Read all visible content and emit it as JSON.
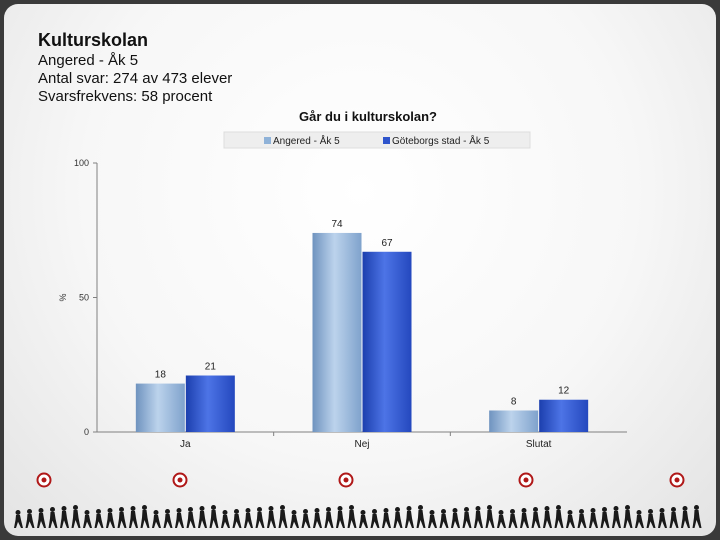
{
  "header": {
    "title": "Kulturskolan",
    "line1": "Angered - Åk 5",
    "line2": "Antal svar: 274 av 473 elever",
    "line3": "Svarsfrekvens: 58 procent"
  },
  "colors": {
    "series1": "#8fb2d8",
    "series2": "#2f55cc"
  },
  "chart_data": {
    "type": "bar",
    "title": "Går du i kulturskolan?",
    "categories": [
      "Ja",
      "Nej",
      "Slutat"
    ],
    "series": [
      {
        "name": "Angered - Åk 5",
        "values": [
          18,
          74,
          8
        ]
      },
      {
        "name": "Göteborgs stad - Åk 5",
        "values": [
          21,
          67,
          12
        ]
      }
    ],
    "ylabel": "%",
    "ylim": [
      0,
      100
    ],
    "yticks": [
      0,
      50,
      100
    ],
    "legend": "top",
    "grid": false
  }
}
